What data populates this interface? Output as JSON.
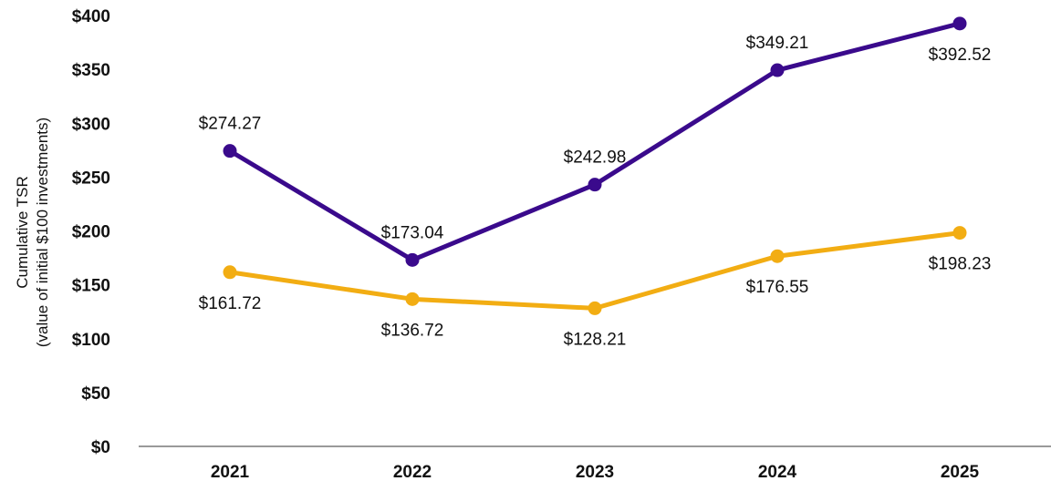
{
  "chart_data": {
    "type": "line",
    "x": [
      "2021",
      "2022",
      "2023",
      "2024",
      "2025"
    ],
    "ylabel_line1": "Cumulative TSR",
    "ylabel_line2": "(value of initial $100 investments)",
    "ylim": [
      0,
      400
    ],
    "yticks": [
      "$0",
      "$50",
      "$100",
      "$150",
      "$200",
      "$250",
      "$300",
      "$350",
      "$400"
    ],
    "yticks_values": [
      0,
      50,
      100,
      150,
      200,
      250,
      300,
      350,
      400
    ],
    "grid": false,
    "legend": "none",
    "series": [
      {
        "color": "#3a0a8c",
        "values": [
          274.27,
          173.04,
          242.98,
          349.21,
          392.52
        ],
        "labels": [
          "$274.27",
          "$173.04",
          "$242.98",
          "$349.21",
          "$392.52"
        ],
        "label_positions": [
          "above",
          "above",
          "above",
          "above",
          "below"
        ]
      },
      {
        "color": "#f2ad13",
        "values": [
          161.72,
          136.72,
          128.21,
          176.55,
          198.23
        ],
        "labels": [
          "$161.72",
          "$136.72",
          "$128.21",
          "$176.55",
          "$198.23"
        ],
        "label_positions": [
          "below",
          "below",
          "below",
          "below",
          "below"
        ]
      }
    ]
  }
}
